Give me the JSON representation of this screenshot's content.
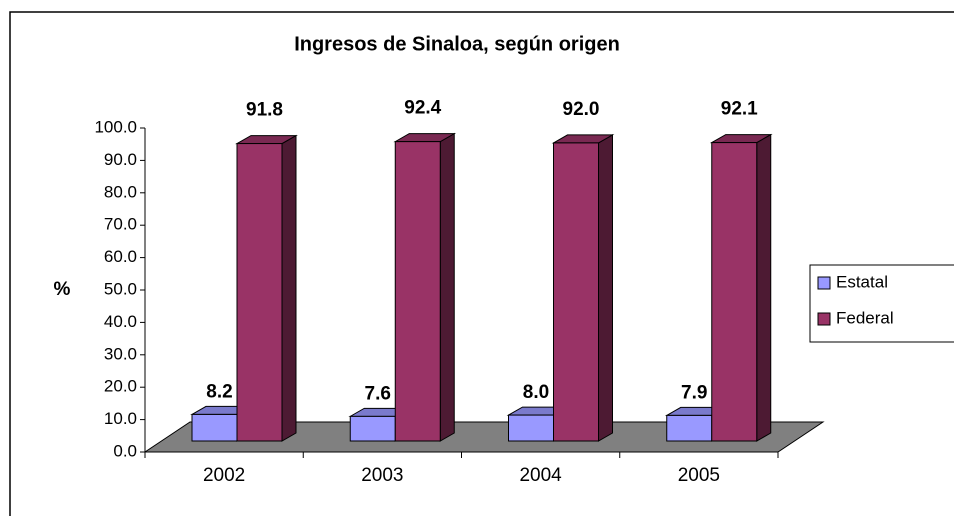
{
  "chart_data": {
    "type": "bar3d",
    "title": "Ingresos de Sinaloa, según origen",
    "ylabel": "%",
    "categories": [
      "2002",
      "2003",
      "2004",
      "2005"
    ],
    "series": [
      {
        "name": "Estatal",
        "color": "#9999ff",
        "values": [
          8.2,
          7.6,
          8.0,
          7.9
        ],
        "value_labels": [
          "8.2",
          "7.6",
          "8.0",
          "7.9"
        ]
      },
      {
        "name": "Federal",
        "color": "#993366",
        "values": [
          91.8,
          92.4,
          92.0,
          92.1
        ],
        "value_labels": [
          "91.8",
          "92.4",
          "92.0",
          "92.1"
        ]
      }
    ],
    "ylim": [
      0,
      100
    ],
    "yticks": [
      {
        "value": 0,
        "label": "0.0"
      },
      {
        "value": 10,
        "label": "10.0"
      },
      {
        "value": 20,
        "label": "20.0"
      },
      {
        "value": 30,
        "label": "30.0"
      },
      {
        "value": 40,
        "label": "40.0"
      },
      {
        "value": 50,
        "label": "50.0"
      },
      {
        "value": 60,
        "label": "60.0"
      },
      {
        "value": 70,
        "label": "70.0"
      },
      {
        "value": 80,
        "label": "80.0"
      },
      {
        "value": 90,
        "label": "90.0"
      },
      {
        "value": 100,
        "label": "100.0"
      }
    ],
    "legend": "right"
  }
}
